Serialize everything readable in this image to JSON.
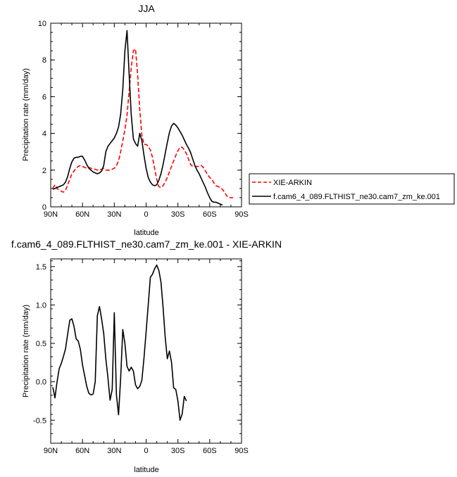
{
  "chart_data": [
    {
      "type": "line",
      "title": "JJA",
      "xlabel": "latitude",
      "ylabel": "Precipitation rate (mm/day)",
      "xlim": [
        90,
        -90
      ],
      "ylim": [
        0,
        10
      ],
      "x_ticks": [
        {
          "value": 90,
          "label": "90N"
        },
        {
          "value": 60,
          "label": "60N"
        },
        {
          "value": 30,
          "label": "30N"
        },
        {
          "value": 0,
          "label": "0"
        },
        {
          "value": -30,
          "label": "30S"
        },
        {
          "value": -60,
          "label": "60S"
        },
        {
          "value": -90,
          "label": "90S"
        }
      ],
      "y_ticks": [
        {
          "value": 0,
          "label": "0"
        },
        {
          "value": 2,
          "label": "2"
        },
        {
          "value": 4,
          "label": "4"
        },
        {
          "value": 6,
          "label": "6"
        },
        {
          "value": 8,
          "label": "8"
        },
        {
          "value": 10,
          "label": "10"
        }
      ],
      "legend": {
        "placement": "right"
      },
      "series": [
        {
          "name": "XIE-ARKIN",
          "color": "#ff0000",
          "dash": "dashed",
          "points": [
            [
              88,
              1.0
            ],
            [
              86,
              1.2
            ],
            [
              84,
              1.0
            ],
            [
              82,
              0.9
            ],
            [
              80,
              0.85
            ],
            [
              78,
              0.8
            ],
            [
              76,
              0.9
            ],
            [
              74,
              1.2
            ],
            [
              72,
              1.5
            ],
            [
              70,
              1.8
            ],
            [
              68,
              1.95
            ],
            [
              66,
              2.1
            ],
            [
              64,
              2.2
            ],
            [
              62,
              2.25
            ],
            [
              60,
              2.2
            ],
            [
              58,
              2.15
            ],
            [
              56,
              2.1
            ],
            [
              54,
              2.15
            ],
            [
              52,
              2.1
            ],
            [
              50,
              2.05
            ],
            [
              48,
              2.05
            ],
            [
              46,
              2.0
            ],
            [
              44,
              2.0
            ],
            [
              42,
              2.05
            ],
            [
              40,
              2.1
            ],
            [
              38,
              2.0
            ],
            [
              36,
              2.0
            ],
            [
              34,
              2.0
            ],
            [
              32,
              2.05
            ],
            [
              30,
              2.1
            ],
            [
              28,
              2.25
            ],
            [
              26,
              2.5
            ],
            [
              24,
              3.0
            ],
            [
              22,
              3.6
            ],
            [
              20,
              4.2
            ],
            [
              18,
              5.0
            ],
            [
              16,
              6.3
            ],
            [
              14,
              7.6
            ],
            [
              12,
              8.5
            ],
            [
              10,
              8.6
            ],
            [
              8,
              7.2
            ],
            [
              6,
              5.3
            ],
            [
              4,
              3.9
            ],
            [
              2,
              3.4
            ],
            [
              0,
              3.4
            ],
            [
              -2,
              3.3
            ],
            [
              -4,
              3.1
            ],
            [
              -6,
              2.7
            ],
            [
              -8,
              2.1
            ],
            [
              -10,
              1.5
            ],
            [
              -12,
              1.1
            ],
            [
              -14,
              1.05
            ],
            [
              -16,
              1.15
            ],
            [
              -18,
              1.35
            ],
            [
              -20,
              1.6
            ],
            [
              -22,
              1.9
            ],
            [
              -24,
              2.2
            ],
            [
              -26,
              2.5
            ],
            [
              -28,
              2.8
            ],
            [
              -30,
              3.05
            ],
            [
              -32,
              3.25
            ],
            [
              -34,
              3.25
            ],
            [
              -36,
              3.1
            ],
            [
              -38,
              2.9
            ],
            [
              -40,
              2.6
            ],
            [
              -42,
              2.3
            ],
            [
              -44,
              2.2
            ],
            [
              -46,
              2.2
            ],
            [
              -48,
              2.2
            ],
            [
              -50,
              2.2
            ],
            [
              -52,
              2.25
            ],
            [
              -54,
              2.15
            ],
            [
              -56,
              1.95
            ],
            [
              -58,
              1.75
            ],
            [
              -60,
              1.6
            ],
            [
              -62,
              1.5
            ],
            [
              -64,
              1.3
            ],
            [
              -66,
              1.15
            ],
            [
              -68,
              1.1
            ],
            [
              -70,
              1.05
            ],
            [
              -72,
              0.95
            ],
            [
              -74,
              0.8
            ],
            [
              -76,
              0.6
            ],
            [
              -78,
              0.5
            ],
            [
              -80,
              0.5
            ],
            [
              -82,
              0.5
            ]
          ]
        },
        {
          "name": "f.cam6_4_089.FLTHIST_ne30.cam7_zm_ke.001",
          "color": "#000000",
          "dash": "solid",
          "points": [
            [
              88,
              0.95
            ],
            [
              86,
              1.0
            ],
            [
              84,
              1.05
            ],
            [
              82,
              1.1
            ],
            [
              80,
              1.15
            ],
            [
              78,
              1.2
            ],
            [
              76,
              1.35
            ],
            [
              74,
              1.65
            ],
            [
              72,
              2.1
            ],
            [
              70,
              2.45
            ],
            [
              68,
              2.65
            ],
            [
              66,
              2.7
            ],
            [
              64,
              2.7
            ],
            [
              62,
              2.75
            ],
            [
              60,
              2.75
            ],
            [
              58,
              2.55
            ],
            [
              56,
              2.3
            ],
            [
              54,
              2.1
            ],
            [
              52,
              2.0
            ],
            [
              50,
              1.9
            ],
            [
              48,
              1.85
            ],
            [
              46,
              1.8
            ],
            [
              44,
              1.85
            ],
            [
              42,
              1.95
            ],
            [
              40,
              2.25
            ],
            [
              38,
              3.0
            ],
            [
              36,
              3.3
            ],
            [
              34,
              3.45
            ],
            [
              32,
              3.6
            ],
            [
              30,
              3.75
            ],
            [
              28,
              4.0
            ],
            [
              26,
              4.35
            ],
            [
              24,
              5.05
            ],
            [
              22,
              6.4
            ],
            [
              20,
              8.5
            ],
            [
              18,
              9.6
            ],
            [
              16,
              7.2
            ],
            [
              14,
              5.0
            ],
            [
              12,
              3.7
            ],
            [
              10,
              3.45
            ],
            [
              8,
              3.3
            ],
            [
              6,
              4.0
            ],
            [
              4,
              3.6
            ],
            [
              2,
              2.8
            ],
            [
              0,
              2.1
            ],
            [
              -2,
              1.6
            ],
            [
              -4,
              1.35
            ],
            [
              -6,
              1.2
            ],
            [
              -8,
              1.15
            ],
            [
              -10,
              1.2
            ],
            [
              -12,
              1.45
            ],
            [
              -14,
              1.8
            ],
            [
              -16,
              2.3
            ],
            [
              -18,
              2.9
            ],
            [
              -20,
              3.5
            ],
            [
              -22,
              4.05
            ],
            [
              -24,
              4.4
            ],
            [
              -26,
              4.55
            ],
            [
              -28,
              4.45
            ],
            [
              -30,
              4.3
            ],
            [
              -32,
              4.1
            ],
            [
              -34,
              3.9
            ],
            [
              -36,
              3.65
            ],
            [
              -38,
              3.4
            ],
            [
              -40,
              3.2
            ],
            [
              -42,
              2.95
            ],
            [
              -44,
              2.6
            ],
            [
              -46,
              2.25
            ],
            [
              -48,
              2.0
            ],
            [
              -50,
              1.8
            ],
            [
              -52,
              1.55
            ],
            [
              -54,
              1.3
            ],
            [
              -56,
              1.05
            ],
            [
              -58,
              0.75
            ],
            [
              -60,
              0.5
            ],
            [
              -62,
              0.3
            ],
            [
              -64,
              0.25
            ],
            [
              -66,
              0.25
            ],
            [
              -68,
              0.2
            ],
            [
              -70,
              0.15
            ],
            [
              -72,
              0.1
            ]
          ]
        }
      ]
    },
    {
      "type": "line",
      "title": "f.cam6_4_089.FLTHIST_ne30.cam7_zm_ke.001 - XIE-ARKIN",
      "xlabel": "latitude",
      "ylabel": "Precipitation rate (mm/day)",
      "xlim": [
        90,
        -90
      ],
      "ylim": [
        -0.8,
        1.6
      ],
      "x_ticks": [
        {
          "value": 90,
          "label": "90N"
        },
        {
          "value": 60,
          "label": "60N"
        },
        {
          "value": 30,
          "label": "30N"
        },
        {
          "value": 0,
          "label": "0"
        },
        {
          "value": -30,
          "label": "30S"
        },
        {
          "value": -60,
          "label": "60S"
        },
        {
          "value": -90,
          "label": "90S"
        }
      ],
      "y_ticks": [
        {
          "value": -0.5,
          "label": "-0.5"
        },
        {
          "value": 0.0,
          "label": "0.0"
        },
        {
          "value": 0.5,
          "label": "0.5"
        },
        {
          "value": 1.0,
          "label": "1.0"
        },
        {
          "value": 1.5,
          "label": "1.5"
        }
      ],
      "series": [
        {
          "color": "#000000",
          "dash": "solid",
          "points": [
            [
              88,
              -0.07
            ],
            [
              86,
              -0.21
            ],
            [
              84,
              0.0
            ],
            [
              82,
              0.17
            ],
            [
              80,
              0.24
            ],
            [
              78,
              0.33
            ],
            [
              76,
              0.43
            ],
            [
              74,
              0.62
            ],
            [
              72,
              0.8
            ],
            [
              70,
              0.82
            ],
            [
              68,
              0.72
            ],
            [
              66,
              0.56
            ],
            [
              64,
              0.53
            ],
            [
              62,
              0.42
            ],
            [
              60,
              0.22
            ],
            [
              58,
              0.08
            ],
            [
              56,
              -0.06
            ],
            [
              54,
              -0.15
            ],
            [
              52,
              -0.17
            ],
            [
              50,
              -0.16
            ],
            [
              48,
              0.0
            ],
            [
              46,
              0.86
            ],
            [
              44,
              0.98
            ],
            [
              42,
              0.82
            ],
            [
              40,
              0.63
            ],
            [
              38,
              0.3
            ],
            [
              36,
              0.05
            ],
            [
              34,
              -0.24
            ],
            [
              32,
              -0.1
            ],
            [
              30,
              0.9
            ],
            [
              28,
              -0.17
            ],
            [
              26,
              -0.43
            ],
            [
              24,
              0.05
            ],
            [
              22,
              0.68
            ],
            [
              20,
              0.5
            ],
            [
              18,
              0.2
            ],
            [
              16,
              0.14
            ],
            [
              14,
              0.19
            ],
            [
              12,
              0.14
            ],
            [
              10,
              -0.04
            ],
            [
              8,
              -0.09
            ],
            [
              6,
              -0.06
            ],
            [
              4,
              0.02
            ],
            [
              2,
              0.31
            ],
            [
              0,
              0.65
            ],
            [
              -2,
              1.0
            ],
            [
              -4,
              1.36
            ],
            [
              -6,
              1.4
            ],
            [
              -8,
              1.47
            ],
            [
              -10,
              1.52
            ],
            [
              -12,
              1.45
            ],
            [
              -14,
              1.3
            ],
            [
              -16,
              0.97
            ],
            [
              -18,
              0.58
            ],
            [
              -20,
              0.3
            ],
            [
              -22,
              0.4
            ],
            [
              -24,
              0.25
            ],
            [
              -26,
              -0.08
            ],
            [
              -28,
              -0.1
            ],
            [
              -30,
              -0.25
            ],
            [
              -32,
              -0.5
            ],
            [
              -34,
              -0.42
            ],
            [
              -36,
              -0.19
            ],
            [
              -38,
              -0.25
            ]
          ]
        }
      ]
    }
  ]
}
